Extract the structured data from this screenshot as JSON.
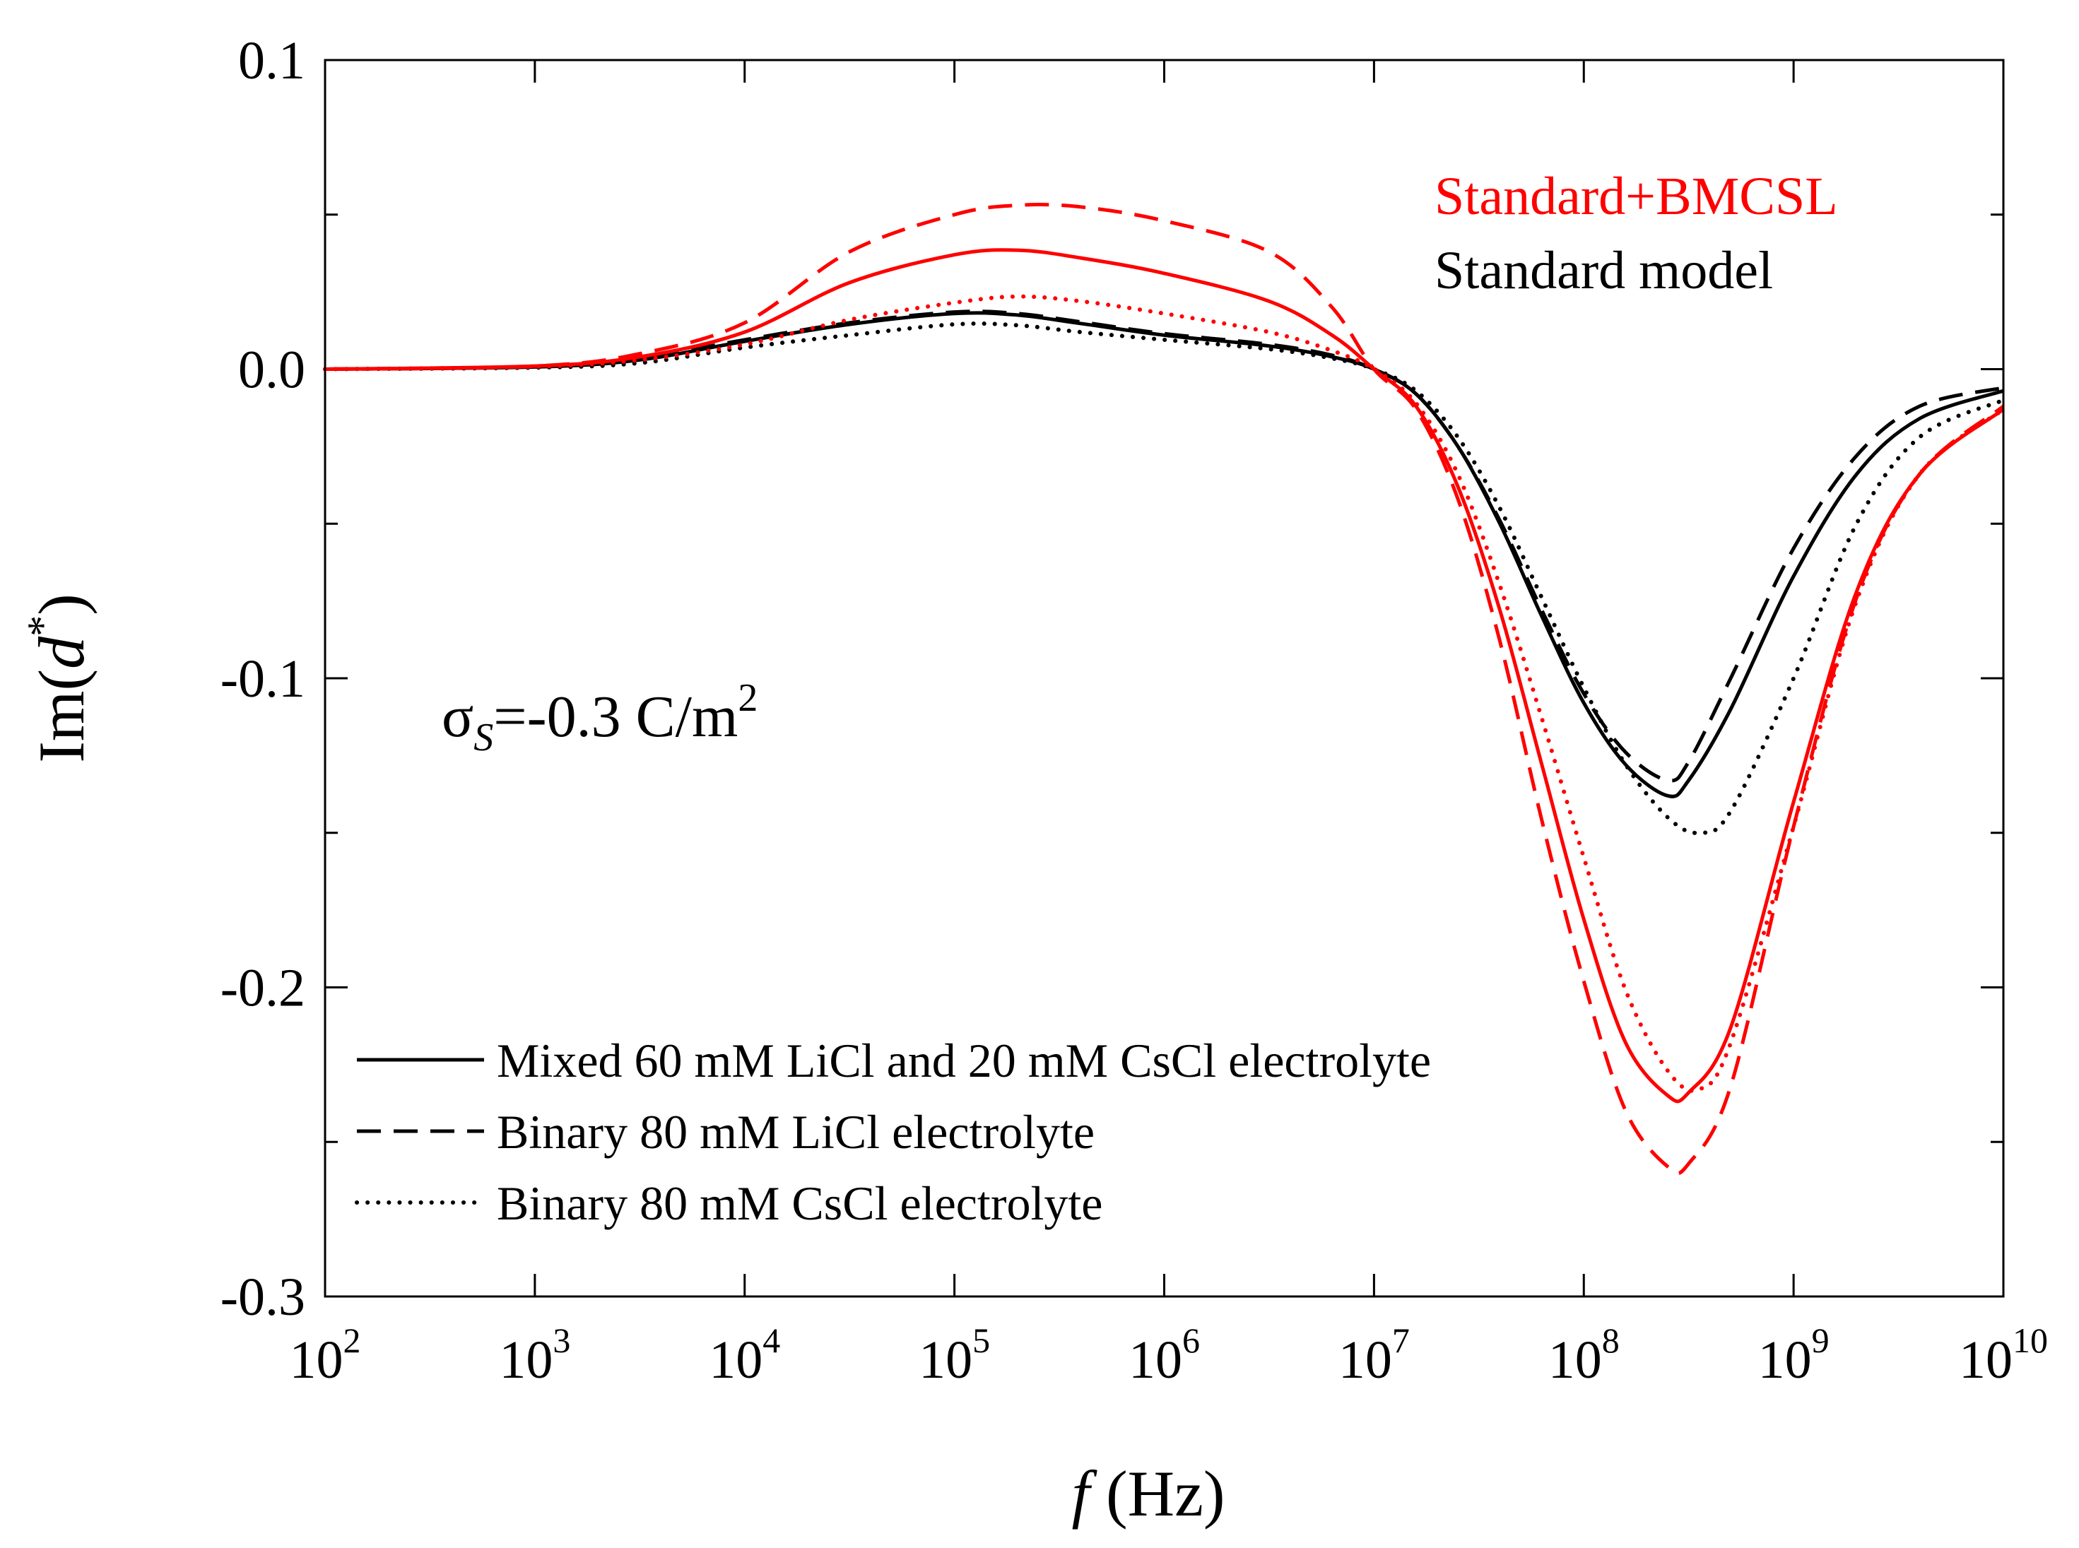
{
  "chart_data": {
    "type": "line",
    "x_scale": "log",
    "xlim": [
      100,
      10000000000
    ],
    "ylim": [
      -0.3,
      0.1
    ],
    "xlabel": {
      "italic": "f",
      "rest": " (Hz)"
    },
    "ylabel": {
      "pre": "Im(",
      "italic": "d",
      "sup": "*",
      "post": ")"
    },
    "y_ticks": [
      {
        "value": 0.1,
        "label": "0.1"
      },
      {
        "value": 0.0,
        "label": "0.0"
      },
      {
        "value": -0.1,
        "label": "-0.1"
      },
      {
        "value": -0.2,
        "label": "-0.2"
      },
      {
        "value": -0.3,
        "label": "-0.3"
      }
    ],
    "x_ticks": [
      {
        "value": 100,
        "base": "10",
        "exp": "2"
      },
      {
        "value": 1000,
        "base": "10",
        "exp": "3"
      },
      {
        "value": 10000,
        "base": "10",
        "exp": "4"
      },
      {
        "value": 100000,
        "base": "10",
        "exp": "5"
      },
      {
        "value": 1000000,
        "base": "10",
        "exp": "6"
      },
      {
        "value": 10000000,
        "base": "10",
        "exp": "7"
      },
      {
        "value": 100000000,
        "base": "10",
        "exp": "8"
      },
      {
        "value": 1000000000,
        "base": "10",
        "exp": "9"
      },
      {
        "value": 10000000000,
        "base": "10",
        "exp": "10"
      }
    ],
    "annotations": {
      "model_red": {
        "text": "Standard+BMCSL",
        "color": "#ff0000"
      },
      "model_black": {
        "text": "Standard model",
        "color": "#000000"
      },
      "sigma": {
        "symbol": "σ",
        "sub": "S",
        "value": "=-0.3 C/m",
        "sup": "2"
      }
    },
    "legend": [
      {
        "label": "Mixed 60 mM LiCl and 20 mM CsCl electrolyte",
        "style": "solid"
      },
      {
        "label": "Binary 80 mM LiCl electrolyte",
        "style": "dashed"
      },
      {
        "label": "Binary 80 mM CsCl electrolyte",
        "style": "dotted"
      }
    ],
    "series": [
      {
        "name": "Standard model - Mixed 60 mM LiCl and 20 mM CsCl electrolyte",
        "model": "Standard model",
        "color": "#000000",
        "style": "solid",
        "points": [
          [
            2,
            0
          ],
          [
            3,
            0.0007
          ],
          [
            3.5,
            0.003
          ],
          [
            4,
            0.009
          ],
          [
            4.5,
            0.0145
          ],
          [
            5,
            0.018
          ],
          [
            5.3,
            0.0175
          ],
          [
            5.6,
            0.0148
          ],
          [
            6,
            0.011
          ],
          [
            6.5,
            0.0075
          ],
          [
            6.8,
            0.004
          ],
          [
            7,
            0
          ],
          [
            7.2,
            -0.008
          ],
          [
            7.4,
            -0.025
          ],
          [
            7.6,
            -0.05
          ],
          [
            7.8,
            -0.08
          ],
          [
            8,
            -0.108
          ],
          [
            8.2,
            -0.128
          ],
          [
            8.4,
            -0.138
          ],
          [
            8.5,
            -0.133
          ],
          [
            8.7,
            -0.11
          ],
          [
            9,
            -0.067
          ],
          [
            9.3,
            -0.034
          ],
          [
            9.6,
            -0.016
          ],
          [
            10,
            -0.007
          ]
        ]
      },
      {
        "name": "Standard model - Binary 80 mM LiCl electrolyte",
        "model": "Standard model",
        "color": "#000000",
        "style": "dashed",
        "points": [
          [
            2,
            0
          ],
          [
            3,
            0.0008
          ],
          [
            3.5,
            0.0035
          ],
          [
            4,
            0.0095
          ],
          [
            4.5,
            0.015
          ],
          [
            5,
            0.0185
          ],
          [
            5.3,
            0.018
          ],
          [
            5.6,
            0.0153
          ],
          [
            6,
            0.0115
          ],
          [
            6.5,
            0.008
          ],
          [
            6.8,
            0.0045
          ],
          [
            7,
            0
          ],
          [
            7.2,
            -0.008
          ],
          [
            7.4,
            -0.025
          ],
          [
            7.6,
            -0.049
          ],
          [
            7.8,
            -0.078
          ],
          [
            8,
            -0.105
          ],
          [
            8.2,
            -0.124
          ],
          [
            8.4,
            -0.133
          ],
          [
            8.5,
            -0.127
          ],
          [
            8.7,
            -0.1
          ],
          [
            9,
            -0.058
          ],
          [
            9.3,
            -0.028
          ],
          [
            9.6,
            -0.012
          ],
          [
            10,
            -0.006
          ]
        ]
      },
      {
        "name": "Standard model - Binary 80 mM CsCl electrolyte",
        "model": "Standard model",
        "color": "#000000",
        "style": "dotted",
        "points": [
          [
            2,
            0
          ],
          [
            3,
            0.0005
          ],
          [
            3.5,
            0.002
          ],
          [
            4,
            0.007
          ],
          [
            4.5,
            0.011
          ],
          [
            5,
            0.0145
          ],
          [
            5.3,
            0.0142
          ],
          [
            5.6,
            0.012
          ],
          [
            6,
            0.0095
          ],
          [
            6.5,
            0.0065
          ],
          [
            6.8,
            0.0035
          ],
          [
            7,
            0
          ],
          [
            7.2,
            -0.007
          ],
          [
            7.4,
            -0.022
          ],
          [
            7.6,
            -0.045
          ],
          [
            7.8,
            -0.074
          ],
          [
            8,
            -0.103
          ],
          [
            8.2,
            -0.128
          ],
          [
            8.4,
            -0.145
          ],
          [
            8.55,
            -0.15
          ],
          [
            8.7,
            -0.143
          ],
          [
            9,
            -0.1
          ],
          [
            9.3,
            -0.05
          ],
          [
            9.6,
            -0.022
          ],
          [
            10,
            -0.01
          ]
        ]
      },
      {
        "name": "Standard+BMCSL - Mixed 60 mM LiCl and 20 mM CsCl electrolyte",
        "model": "Standard+BMCSL",
        "color": "#ff0000",
        "style": "solid",
        "points": [
          [
            2,
            0
          ],
          [
            3,
            0.001
          ],
          [
            3.5,
            0.004
          ],
          [
            4,
            0.012
          ],
          [
            4.5,
            0.028
          ],
          [
            5,
            0.037
          ],
          [
            5.3,
            0.0385
          ],
          [
            5.6,
            0.036
          ],
          [
            6,
            0.031
          ],
          [
            6.5,
            0.022
          ],
          [
            6.8,
            0.011
          ],
          [
            7,
            0
          ],
          [
            7.2,
            -0.012
          ],
          [
            7.4,
            -0.038
          ],
          [
            7.6,
            -0.078
          ],
          [
            7.8,
            -0.128
          ],
          [
            8,
            -0.178
          ],
          [
            8.2,
            -0.218
          ],
          [
            8.4,
            -0.235
          ],
          [
            8.5,
            -0.234
          ],
          [
            8.7,
            -0.213
          ],
          [
            9,
            -0.14
          ],
          [
            9.3,
            -0.072
          ],
          [
            9.6,
            -0.034
          ],
          [
            10,
            -0.013
          ]
        ]
      },
      {
        "name": "Standard+BMCSL - Binary 80 mM LiCl electrolyte",
        "model": "Standard+BMCSL",
        "color": "#ff0000",
        "style": "dashed",
        "points": [
          [
            2,
            0
          ],
          [
            3,
            0.001
          ],
          [
            3.5,
            0.005
          ],
          [
            4,
            0.015
          ],
          [
            4.5,
            0.038
          ],
          [
            5,
            0.05
          ],
          [
            5.3,
            0.053
          ],
          [
            5.6,
            0.0525
          ],
          [
            6,
            0.048
          ],
          [
            6.5,
            0.038
          ],
          [
            6.8,
            0.02
          ],
          [
            7,
            0
          ],
          [
            7.2,
            -0.013
          ],
          [
            7.4,
            -0.042
          ],
          [
            7.6,
            -0.088
          ],
          [
            7.8,
            -0.146
          ],
          [
            8,
            -0.198
          ],
          [
            8.2,
            -0.24
          ],
          [
            8.4,
            -0.258
          ],
          [
            8.5,
            -0.257
          ],
          [
            8.7,
            -0.232
          ],
          [
            9,
            -0.148
          ],
          [
            9.3,
            -0.074
          ],
          [
            9.6,
            -0.034
          ],
          [
            10,
            -0.012
          ]
        ]
      },
      {
        "name": "Standard+BMCSL - Binary 80 mM CsCl electrolyte",
        "model": "Standard+BMCSL",
        "color": "#ff0000",
        "style": "dotted",
        "points": [
          [
            2,
            0
          ],
          [
            3,
            0.0008
          ],
          [
            3.5,
            0.003
          ],
          [
            4,
            0.008
          ],
          [
            4.5,
            0.016
          ],
          [
            5,
            0.0215
          ],
          [
            5.3,
            0.0235
          ],
          [
            5.6,
            0.022
          ],
          [
            6,
            0.018
          ],
          [
            6.5,
            0.012
          ],
          [
            6.8,
            0.006
          ],
          [
            7,
            0
          ],
          [
            7.2,
            -0.011
          ],
          [
            7.4,
            -0.034
          ],
          [
            7.6,
            -0.07
          ],
          [
            7.8,
            -0.113
          ],
          [
            8,
            -0.158
          ],
          [
            8.2,
            -0.201
          ],
          [
            8.4,
            -0.227
          ],
          [
            8.55,
            -0.233
          ],
          [
            8.7,
            -0.218
          ],
          [
            9,
            -0.148
          ],
          [
            9.3,
            -0.075
          ],
          [
            9.6,
            -0.034
          ],
          [
            10,
            -0.013
          ]
        ]
      }
    ]
  }
}
